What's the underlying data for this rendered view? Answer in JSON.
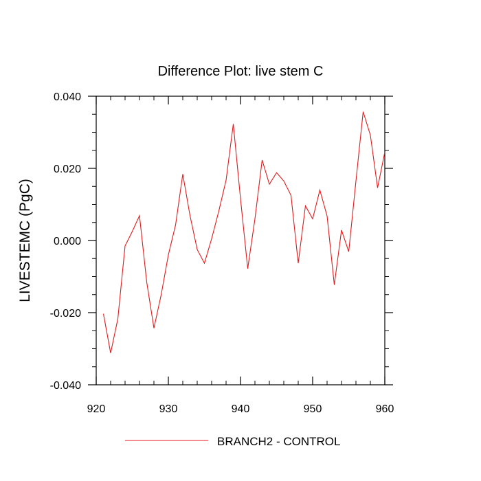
{
  "chart_data": {
    "type": "line",
    "title": "Difference Plot: live stem C",
    "xlabel": "",
    "ylabel": "LIVESTEMC  (PgC)",
    "xlim": [
      920,
      960
    ],
    "ylim": [
      -0.04,
      0.04
    ],
    "x_ticks": [
      920,
      930,
      940,
      950,
      960
    ],
    "x_tick_labels": [
      "920",
      "930",
      "940",
      "950",
      "960"
    ],
    "y_ticks": [
      -0.04,
      -0.02,
      0.0,
      0.02,
      0.04
    ],
    "y_tick_labels": [
      "-0.040",
      "-0.020",
      "0.000",
      "0.020",
      "0.040"
    ],
    "grid": false,
    "legend_position": "bottom-center",
    "series": [
      {
        "name": "BRANCH2 - CONTROL",
        "color": "#e41a1c",
        "x": [
          921,
          922,
          923,
          924,
          925,
          926,
          927,
          928,
          929,
          930,
          931,
          932,
          933,
          934,
          935,
          936,
          937,
          938,
          939,
          940,
          941,
          942,
          943,
          944,
          945,
          946,
          947,
          948,
          949,
          950,
          951,
          952,
          953,
          954,
          955,
          956,
          957,
          958,
          959,
          960
        ],
        "values": [
          -0.0203,
          -0.0312,
          -0.0217,
          -0.0015,
          0.0025,
          0.0069,
          -0.0115,
          -0.0243,
          -0.0151,
          -0.004,
          0.0043,
          0.0184,
          0.0069,
          -0.0025,
          -0.0063,
          0.0005,
          0.0082,
          0.0167,
          0.0323,
          0.0116,
          -0.0078,
          0.006,
          0.0223,
          0.0156,
          0.0188,
          0.0165,
          0.0125,
          -0.0063,
          0.0096,
          0.006,
          0.014,
          0.0068,
          -0.0123,
          0.0029,
          -0.0031,
          0.0165,
          0.0357,
          0.0292,
          0.0146,
          0.0245
        ]
      }
    ]
  }
}
